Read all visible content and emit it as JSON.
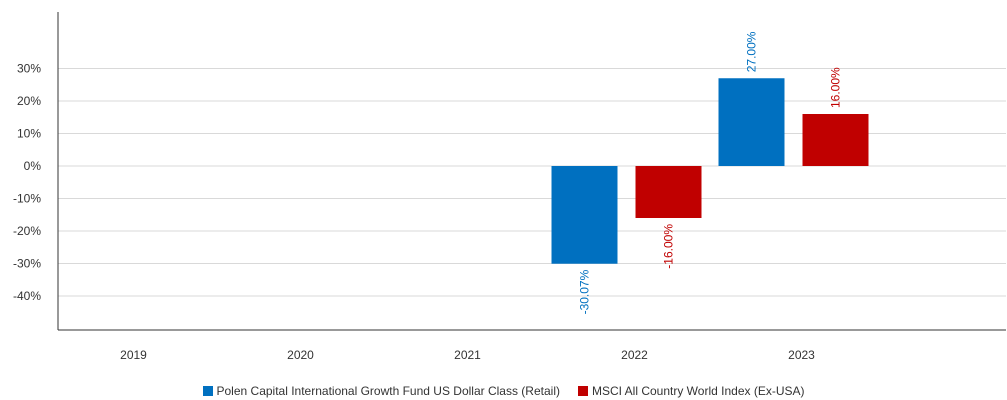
{
  "colors": {
    "fund": "#0070c0",
    "index": "#c00000",
    "grid": "#d9d9d9",
    "axis": "#333333",
    "text": "#333333"
  },
  "chart_data": {
    "type": "bar",
    "categories": [
      "2019",
      "2020",
      "2021",
      "2022",
      "2023"
    ],
    "series": [
      {
        "name": "Polen Capital International Growth Fund US Dollar Class (Retail)",
        "values": [
          null,
          null,
          null,
          -30.07,
          27.0
        ],
        "labels": [
          null,
          null,
          null,
          "-30.07%",
          "27.00%"
        ]
      },
      {
        "name": "MSCI All Country World Index (Ex-USA)",
        "values": [
          null,
          null,
          null,
          -16.0,
          16.0
        ],
        "labels": [
          null,
          null,
          null,
          "-16.00%",
          "16.00%"
        ]
      }
    ],
    "yticks": [
      30,
      20,
      10,
      0,
      -10,
      -20,
      -30,
      -40
    ],
    "ytick_labels": [
      "30%",
      "20%",
      "10%",
      "0%",
      "-10%",
      "-20%",
      "-30%",
      "-40%"
    ],
    "ylim": [
      -50,
      50
    ],
    "grid": true,
    "legend_position": "bottom",
    "title": "",
    "xlabel": "",
    "ylabel": ""
  }
}
